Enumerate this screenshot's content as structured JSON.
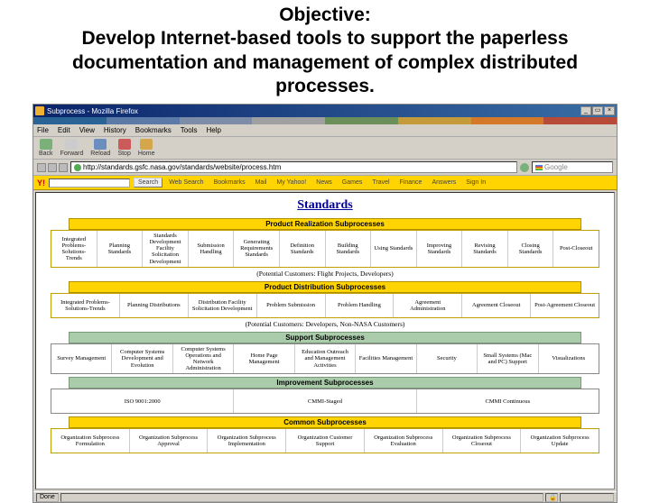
{
  "slide": {
    "title_l1": "Objective:",
    "title_l2": "Develop Internet-based tools to support the paperless documentation and management of complex distributed processes."
  },
  "window": {
    "title": "Subprocess - Mozilla Firefox",
    "min": "_",
    "max": "▭",
    "close": "×"
  },
  "colorbar": [
    "#2a6496",
    "#5b7aa8",
    "#7d8da8",
    "#a0a0a0",
    "#6a8f5a",
    "#c59a3a",
    "#d4782a",
    "#b84a3a"
  ],
  "menu": [
    "File",
    "Edit",
    "View",
    "History",
    "Bookmarks",
    "Tools",
    "Help"
  ],
  "toolbar": {
    "back": {
      "label": "Back",
      "color": "#7ab07a"
    },
    "forward": {
      "label": "Forward",
      "color": "#cccccc"
    },
    "reload": {
      "label": "Reload",
      "color": "#6a8fbf"
    },
    "stop": {
      "label": "Stop",
      "color": "#cc5a5a"
    },
    "home": {
      "label": "Home",
      "color": "#d4a84a"
    }
  },
  "url": "http://standards.gsfc.nasa.gov/standards/website/process.htm",
  "search_placeholder": "Google",
  "yahoo": {
    "logo": "Y!",
    "search_label": "Search",
    "items": [
      "Web Search",
      "Bookmarks",
      "Mail",
      "My Yahoo!",
      "News",
      "Games",
      "Travel",
      "Finance",
      "Answers",
      "Sign In"
    ]
  },
  "page": {
    "title": "Standards",
    "sections": [
      {
        "header": "Product Realization Subprocesses",
        "style": "y",
        "cells": [
          "Integrated Problems-Solutions-Trends",
          "Planning Standards",
          "Standards Development Facility Solicitation Development",
          "Submission Handling",
          "Generating Requirements Standards",
          "Definition Standards",
          "Building Standards",
          "Using Standards",
          "Improving Standards",
          "Revising Standards",
          "Closing Standards",
          "Post-Closeout"
        ],
        "footnote": "(Potential Customers: Flight Projects, Developers)"
      },
      {
        "header": "Product Distribution Subprocesses",
        "style": "y",
        "cells": [
          "Integrated Problems-Solutions-Trends",
          "Planning Distributions",
          "Distribution Facility Solicitation Development",
          "Problem Submission",
          "Problem Handling",
          "Agreement Administration",
          "Agreement Closeout",
          "Post-Agreement Closeout"
        ],
        "footnote": "(Potential Customers: Developers, Non-NASA Customers)"
      },
      {
        "header": "Support Subprocesses",
        "style": "g",
        "cells": [
          "Survey Management",
          "Computer Systems Development and Evolution",
          "Computer Systems Operations and Network Administration",
          "Home Page Management",
          "Education Outreach and Management Activities",
          "Facilities Management",
          "Security",
          "Small Systems (Mac and PC) Support",
          "Visualizations"
        ],
        "footnote": ""
      },
      {
        "header": "Improvement Subprocesses",
        "style": "g",
        "cells": [
          "ISO 9001:2000",
          "CMMI-Staged",
          "CMMI Continuous"
        ],
        "footnote": ""
      },
      {
        "header": "Common Subprocesses",
        "style": "y",
        "cells": [
          "Organization Subprocess Formulation",
          "Organization Subprocess Approval",
          "Organization Subprocess Implementation",
          "Organization Customer Support",
          "Organization Subprocess Evaluation",
          "Organization Subprocess Closeout",
          "Organization Subprocess Update"
        ],
        "footnote": ""
      }
    ]
  },
  "status": {
    "done": "Done"
  }
}
